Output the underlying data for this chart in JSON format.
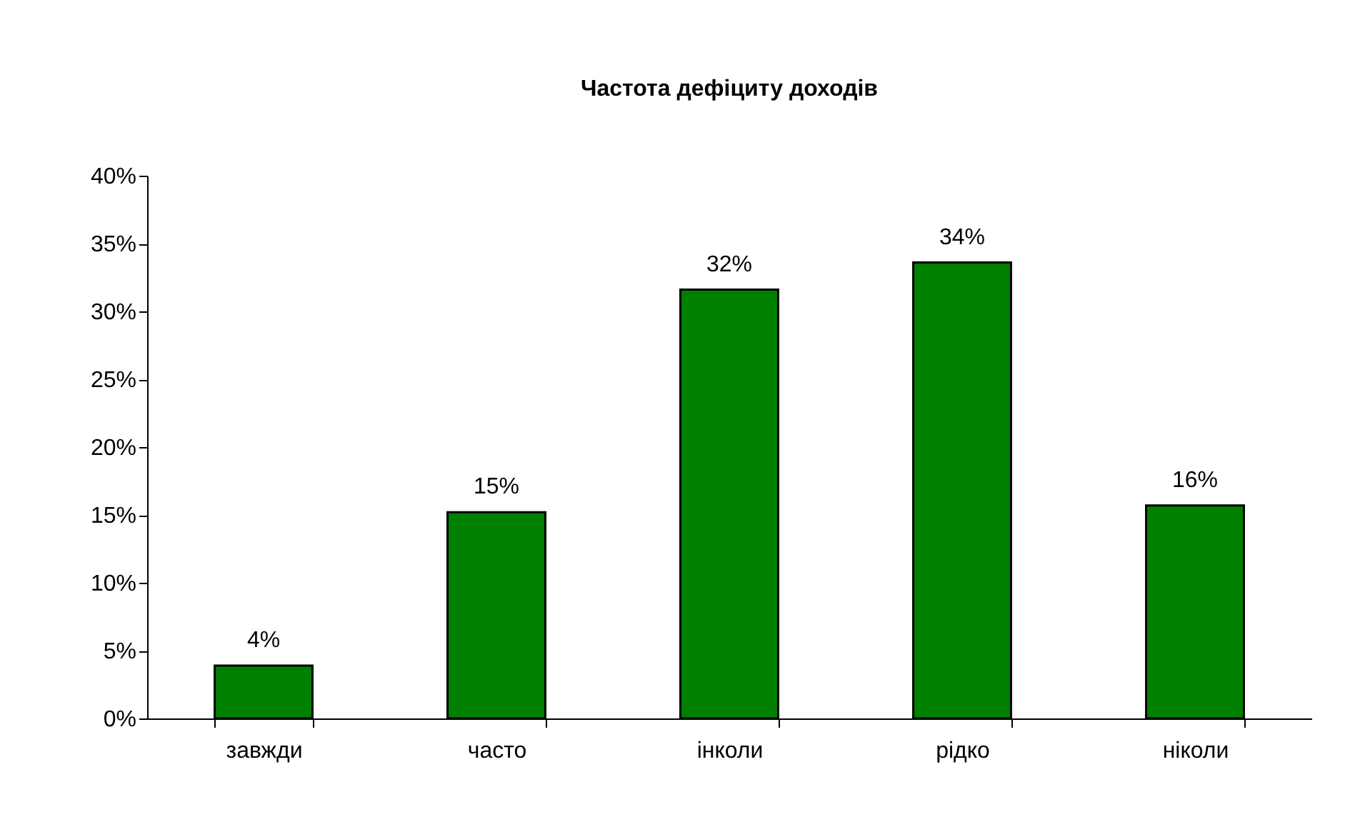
{
  "chart_data": {
    "type": "bar",
    "title": "Частота дефіциту доходів",
    "categories": [
      "завжди",
      "часто",
      "інколи",
      "рідко",
      "ніколи"
    ],
    "values": [
      3.9,
      15.2,
      31.6,
      33.6,
      15.7
    ],
    "value_labels": [
      "4%",
      "15%",
      "32%",
      "34%",
      "16%"
    ],
    "color": "#008000",
    "ylim": [
      0,
      40
    ],
    "yticks": [
      {
        "value": 0,
        "label": "0%"
      },
      {
        "value": 5,
        "label": "5%"
      },
      {
        "value": 10,
        "label": "10%"
      },
      {
        "value": 15,
        "label": "15%"
      },
      {
        "value": 20,
        "label": "20%"
      },
      {
        "value": 25,
        "label": "25%"
      },
      {
        "value": 30,
        "label": "30%"
      },
      {
        "value": 35,
        "label": "35%"
      },
      {
        "value": 40,
        "label": "40%"
      }
    ],
    "grid": false
  }
}
